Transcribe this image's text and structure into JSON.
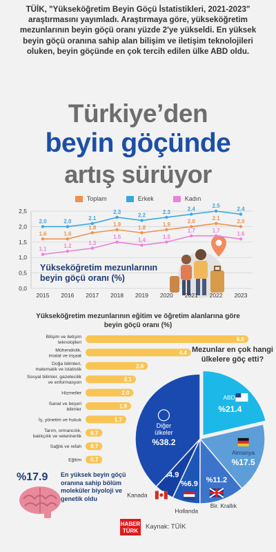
{
  "intro_text": "TÜİK, \"Yükseköğretim Beyin Göçü İstatistikleri, 2021-2023\" araştırmasını yayımladı. Araştırmaya göre, yükseköğretim mezunlarının beyin göçü oranı yüzde 2'ye yükseldi. En yüksek beyin göçü oranına sahip alan bilişim ve iletişim teknolojileri oluken, beyin göçünde en çok tercih edilen ülke ABD oldu.",
  "headline": {
    "line1": "Türkiye’den",
    "line2": "beyin göçünde",
    "line3": "artış sürüyor"
  },
  "colors": {
    "toplam": "#f0904b",
    "erkek": "#3aa6e4",
    "kadin": "#e983d8",
    "bar": "#f8c454",
    "navy": "#1f3c73"
  },
  "chart_data": [
    {
      "type": "line",
      "title": "Yükseköğretim mezunlarının beyin göçü oranı (%)",
      "x": [
        "2015",
        "2016",
        "2017",
        "2018",
        "2019",
        "2020",
        "2021",
        "2022",
        "2023"
      ],
      "ylim": [
        0,
        2.5
      ],
      "yticks": [
        "0,0",
        "0,5",
        "1,0",
        "1,5",
        "2,0",
        "2,5"
      ],
      "series": [
        {
          "name": "Toplam",
          "values": [
            1.6,
            1.6,
            1.8,
            1.9,
            1.8,
            1.9,
            2.0,
            2.1,
            2.0
          ],
          "labels": [
            "1.6",
            "1.6",
            "1.8",
            "1.9",
            "1.8",
            "1.9",
            "2.0",
            "2.1",
            "2.0"
          ]
        },
        {
          "name": "Erkek",
          "values": [
            2.0,
            2.0,
            2.1,
            2.3,
            2.2,
            2.3,
            2.4,
            2.5,
            2.4
          ],
          "labels": [
            "2.0",
            "2.0",
            "2.1",
            "2.3",
            "2.2",
            "2.3",
            "2.4",
            "2.5",
            "2.4"
          ]
        },
        {
          "name": "Kadın",
          "values": [
            1.1,
            1.2,
            1.3,
            1.5,
            1.4,
            1.5,
            1.7,
            1.7,
            1.6
          ],
          "labels": [
            "1.1",
            "1.2",
            "1.3",
            "1.5",
            "1.4",
            "1.5",
            "1.7",
            "1.7",
            "1.6"
          ]
        }
      ]
    },
    {
      "type": "bar",
      "title": "Yükseköğretim mezunlarının eğitim ve öğretim alanlarına göre beyin göçü oranı (%)",
      "categories": [
        [
          "Bilişim ve iletişim",
          "teknolojileri"
        ],
        [
          "Mühendislik,",
          "imalat ve inşaat"
        ],
        [
          "Doğa bilimleri,",
          "matematik ve istatistik"
        ],
        [
          "Sosyal bilimler, gazetecilik",
          "ve enformasyon"
        ],
        [
          "Hizmetler"
        ],
        [
          "Sanat ve beşeri",
          "bilimler"
        ],
        [
          "İş, yönetim ve hukuk"
        ],
        [
          "Tarım, ormancılık,",
          "balıkçılık ve veterinerlik"
        ],
        [
          "Sağlık ve refah"
        ],
        [
          "Eğitim"
        ]
      ],
      "values": [
        6.8,
        4.4,
        2.6,
        2.1,
        2.0,
        1.9,
        1.7,
        0.7,
        0.7,
        0.7
      ],
      "labels": [
        "6.8",
        "4.4",
        "2.6",
        "2.1",
        "2.0",
        "1.9",
        "1.7",
        "0.7",
        "0.7",
        "0.7"
      ]
    },
    {
      "type": "pie",
      "title": "Mezunlar en çok hangi ülkelere göç etti?",
      "slices": [
        {
          "name": "ABD",
          "value": 21.4,
          "label": "%21.4",
          "color": "#1cb8e8"
        },
        {
          "name": "Almanya",
          "value": 17.5,
          "label": "%17.5",
          "color": "#5d9ed8"
        },
        {
          "name": "Bir. Krallık",
          "value": 11.2,
          "label": "%11.2",
          "color": "#3c74cb"
        },
        {
          "name": "Hollanda",
          "value": 6.9,
          "label": "%6.9",
          "color": "#1e56b6"
        },
        {
          "name": "Kanada",
          "value": 4.9,
          "label": "%4.9",
          "color": "#1340a2"
        },
        {
          "name": "Diğer ülkeler",
          "value": 38.2,
          "label": "%38.2",
          "color": "#1a4aaf"
        }
      ]
    }
  ],
  "brain": {
    "stat": "%17.9",
    "text": "En yüksek beyin göçü oranına sahip bölüm moleküler biyoloji ve genetik oldu"
  },
  "brand": {
    "line1": "HABER",
    "line2": "TÜRK"
  },
  "source": "Kaynak: TÜİK"
}
